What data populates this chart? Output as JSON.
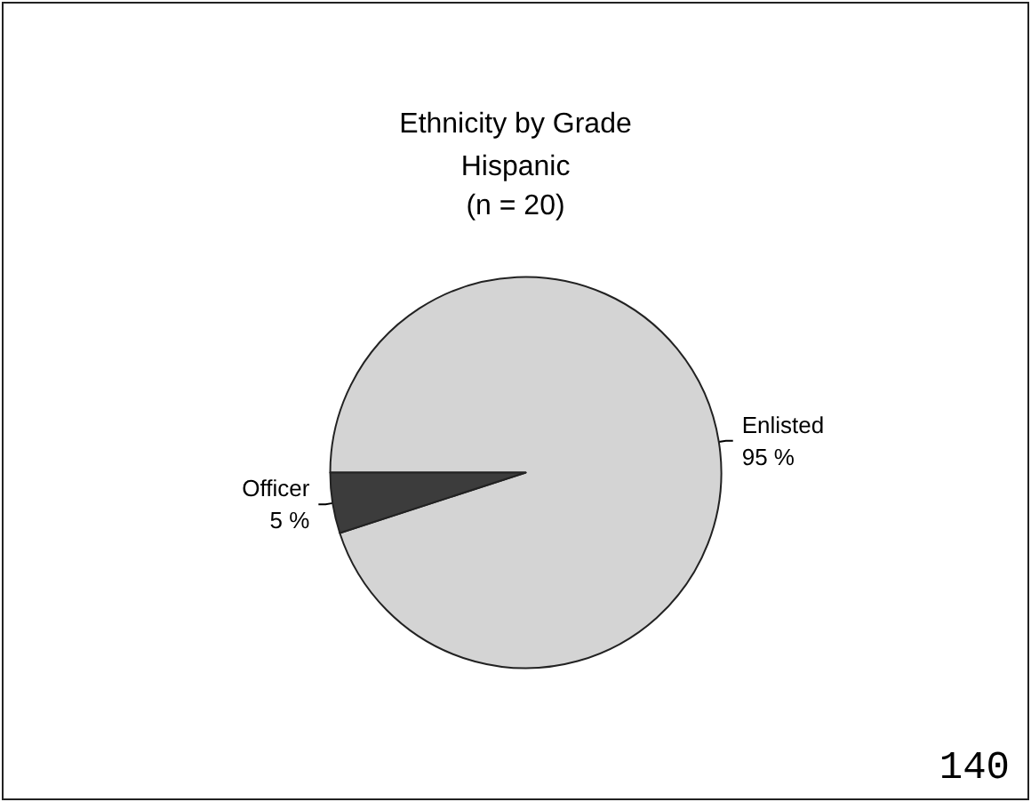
{
  "chart_data": {
    "type": "pie",
    "title": "Ethnicity by Grade",
    "subtitle": "Hispanic\n(n = 20)",
    "categories": [
      "Enlisted",
      "Officer"
    ],
    "values": [
      95,
      5
    ],
    "colors": [
      "#d4d4d4",
      "#3c3c3c"
    ],
    "value_labels": [
      "95 %",
      "5 %"
    ],
    "annotations": [
      "140"
    ],
    "legend": false
  }
}
